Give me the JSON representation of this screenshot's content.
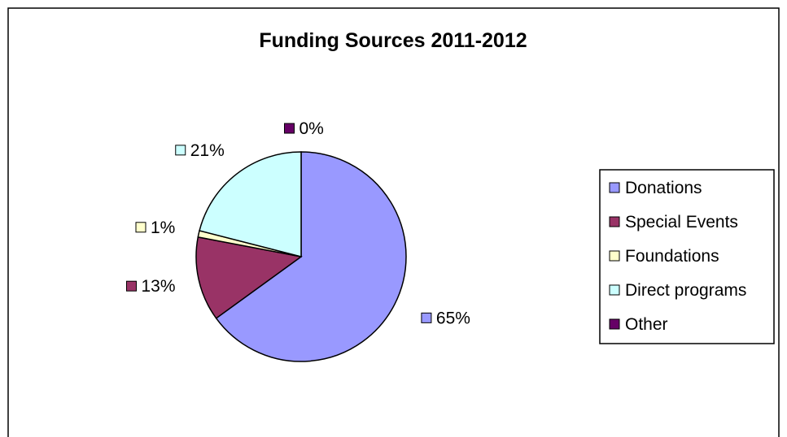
{
  "chart_data": {
    "type": "pie",
    "title": "Funding Sources 2011-2012",
    "categories": [
      "Donations",
      "Special Events",
      "Foundations",
      "Direct programs",
      "Other"
    ],
    "values": [
      65,
      13,
      1,
      21,
      0
    ],
    "data_labels": [
      "65%",
      "13%",
      "1%",
      "21%",
      "0%"
    ],
    "colors": [
      "#9999ff",
      "#993366",
      "#ffffcc",
      "#ccffff",
      "#660066"
    ],
    "start_angle_deg": 0,
    "direction": "clockwise",
    "legend_position": "right",
    "grid": false
  }
}
